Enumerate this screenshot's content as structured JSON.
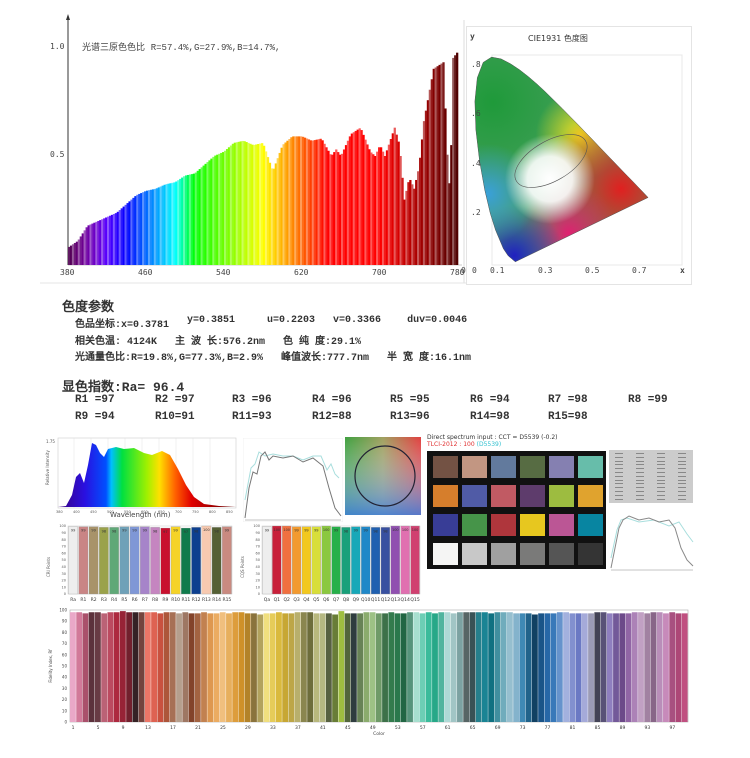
{
  "spectrum": {
    "title": "光谱三原色色比",
    "ratio_text": "R=57.4%,G=27.9%,B=14.7%,",
    "y_ticks": [
      "1.0",
      "0.5"
    ],
    "x_ticks": [
      "380",
      "460",
      "540",
      "620",
      "700",
      "780"
    ]
  },
  "cie": {
    "title": "CIE1931 色度图",
    "y_label": "y",
    "x_label": "x",
    "y_ticks": [
      ".8",
      ".6",
      ".4",
      ".2"
    ],
    "x_ticks": [
      "0",
      "0.1",
      "0.3",
      "0.5",
      "0.7"
    ],
    "origin": "0"
  },
  "chromaticity": {
    "heading": "色度参数",
    "coord_label": "色品坐标:x=0.3781",
    "y": "y=0.3851",
    "u": "u=0.2203",
    "v": "v=0.3366",
    "duv": "duv=0.0046",
    "cct": "相关色温: 4124K",
    "dominant": "主 波 长:576.2nm",
    "purity": "色 纯 度:29.1%",
    "flux_ratio": "光通量色比:R=19.8%,G=77.3%,B=2.9%",
    "peak": "峰值波长:777.7nm",
    "fwhm": "半 宽 度:16.1nm"
  },
  "rendering": {
    "heading": "显色指数:Ra= 96.4",
    "items": [
      "R1 =97",
      "R2 =97",
      "R3 =96",
      "R4 =96",
      "R5 =95",
      "R6 =94",
      "R7 =98",
      "R8 =99",
      "R9 =94",
      "R10=91",
      "R11=93",
      "R12=88",
      "R13=96",
      "R14=98",
      "R15=98"
    ]
  },
  "chart_data": [
    {
      "type": "area",
      "title": "光谱三原色色比 R=57.4%,G=27.9%,B=14.7%,",
      "xlim": [
        380,
        780
      ],
      "ylim": [
        0,
        1.0
      ],
      "x": [
        380,
        390,
        400,
        410,
        420,
        430,
        440,
        450,
        460,
        470,
        480,
        490,
        500,
        510,
        520,
        530,
        540,
        550,
        560,
        570,
        580,
        590,
        600,
        610,
        620,
        630,
        640,
        650,
        655,
        660,
        670,
        680,
        690,
        695,
        700,
        705,
        715,
        720,
        725,
        730,
        735,
        740,
        745,
        755,
        765,
        770,
        772,
        775,
        780
      ],
      "y": [
        0.08,
        0.11,
        0.18,
        0.2,
        0.22,
        0.24,
        0.28,
        0.32,
        0.34,
        0.35,
        0.37,
        0.38,
        0.41,
        0.42,
        0.46,
        0.5,
        0.52,
        0.56,
        0.57,
        0.55,
        0.56,
        0.43,
        0.55,
        0.59,
        0.59,
        0.57,
        0.58,
        0.5,
        0.53,
        0.5,
        0.6,
        0.63,
        0.52,
        0.5,
        0.55,
        0.5,
        0.63,
        0.55,
        0.3,
        0.4,
        0.35,
        0.45,
        0.66,
        0.9,
        0.93,
        0.4,
        0.35,
        0.95,
        0.98
      ]
    },
    {
      "type": "bar",
      "y_label": "CRI Points",
      "categories": [
        "Ra",
        "R1",
        "R2",
        "R3",
        "R4",
        "R5",
        "R6",
        "R7",
        "R8",
        "R9",
        "R10",
        "R11",
        "R12",
        "R13",
        "R14",
        "R15"
      ],
      "values": [
        99,
        99,
        99,
        98,
        98,
        99,
        99,
        99,
        98,
        97,
        99,
        97,
        98,
        100,
        98,
        99
      ],
      "colors": [
        "#eeeeee",
        "#c98585",
        "#a8936a",
        "#9aa24a",
        "#5fa877",
        "#6fa1b8",
        "#7f97d6",
        "#a684c9",
        "#c585c0",
        "#c8102e",
        "#f5d327",
        "#0f7a4b",
        "#0d3f8f",
        "#f7c9b0",
        "#556035",
        "#c98a80"
      ],
      "ylim": [
        0,
        100
      ]
    },
    {
      "type": "bar",
      "y_label": "CQS Points",
      "categories": [
        "Qa",
        "Q1",
        "Q2",
        "Q3",
        "Q4",
        "Q5",
        "Q6",
        "Q7",
        "Q8",
        "Q9",
        "Q10",
        "Q11",
        "Q12",
        "Q13",
        "Q14",
        "Q15"
      ],
      "values": [
        99,
        100,
        100,
        99,
        99,
        99,
        100,
        99,
        98,
        99,
        99,
        98,
        98,
        100,
        100,
        100
      ],
      "colors": [
        "#eeeeee",
        "#c8203a",
        "#f07040",
        "#f29a30",
        "#f2c81e",
        "#d8de3a",
        "#8bc840",
        "#27b04a",
        "#1aa07a",
        "#18a8b8",
        "#2088c8",
        "#2060b0",
        "#3850a0",
        "#9050b0",
        "#e070b0",
        "#d04070"
      ],
      "ylim": [
        0,
        100
      ]
    },
    {
      "type": "bar",
      "x_label": "Color",
      "y_label": "Fidelity Index, Rf",
      "ylim": [
        0,
        100
      ],
      "y_ticks": [
        0,
        10,
        20,
        30,
        40,
        50,
        60,
        70,
        80,
        90,
        100
      ],
      "x_ticks": [
        1,
        5,
        9,
        13,
        17,
        21,
        25,
        29,
        33,
        37,
        41,
        45,
        49,
        53,
        57,
        61,
        65,
        69,
        73,
        77,
        81,
        85,
        89,
        93,
        97
      ],
      "values": [
        98,
        98,
        97,
        98,
        98,
        97,
        98,
        98,
        99,
        98,
        98,
        98,
        98,
        98,
        97,
        98,
        98,
        97,
        98,
        97,
        97,
        98,
        97,
        97,
        98,
        97,
        98,
        98,
        97,
        97,
        96,
        97,
        97,
        98,
        97,
        97,
        98,
        98,
        98,
        97,
        97,
        97,
        96,
        99,
        97,
        97,
        97,
        98,
        98,
        97,
        97,
        98,
        97,
        97,
        98,
        98,
        97,
        98,
        97,
        98,
        98,
        97,
        98,
        98,
        98,
        98,
        98,
        97,
        98,
        98,
        98,
        97,
        97,
        97,
        96,
        97,
        97,
        97,
        98,
        98,
        97,
        97,
        97,
        97,
        98,
        98,
        97,
        97,
        97,
        97,
        98,
        98,
        97,
        98,
        98,
        97,
        98,
        97,
        97
      ],
      "palette": [
        "#eaa8c8",
        "#c05878",
        "#3a2428",
        "#c8687e",
        "#b02a40",
        "#8a2030",
        "#222222",
        "#f07868",
        "#d05040",
        "#a05838",
        "#b8a898",
        "#804028",
        "#b87850",
        "#e8a050",
        "#f0c080",
        "#e0a040",
        "#c88a20",
        "#807040",
        "#f0e080",
        "#e0c040",
        "#c0a030",
        "#b8b070",
        "#606030",
        "#e0e0a0",
        "#3e4a30",
        "#a0c040",
        "#1e2838",
        "#80a060",
        "#a0c488",
        "#3e7048",
        "#2e8050",
        "#1e6040",
        "#a8e0d0",
        "#40c0a0",
        "#1ea080",
        "#c0e0e0",
        "#80a8a8",
        "#404040",
        "#2090a0",
        "#107080",
        "#68a8b8",
        "#a8c8d8",
        "#3080b0",
        "#104060",
        "#2060a0",
        "#4080c0",
        "#a8b4e0",
        "#6070c0",
        "#c4c4e4",
        "#2e2e3e",
        "#9080c0",
        "#604080",
        "#a070b0",
        "#c4a4c4",
        "#806080",
        "#d4a4d4",
        "#a04070",
        "#c05080"
      ]
    }
  ],
  "mini_spectrum": {
    "y_label": "Relative Intensity",
    "x_label": "Wavelength (nm)",
    "y_top": "1.75",
    "x_ticks": [
      "380",
      "400",
      "450",
      "500",
      "550",
      "600",
      "650",
      "700",
      "750",
      "800",
      "850"
    ]
  },
  "colorchecker": {
    "title": "Direct spectrum input : CCT = D5539 (-0.2)",
    "tlci_label": "TLCI-2012 : 100",
    "tlci_ref": "(D5539)",
    "patches": [
      "#735244",
      "#c29682",
      "#627a9d",
      "#576c43",
      "#8580b1",
      "#67bdaa",
      "#d67e2c",
      "#505ba6",
      "#c15a63",
      "#5e3c6c",
      "#9dbc40",
      "#e0a32e",
      "#383d96",
      "#469449",
      "#af363c",
      "#e7c71f",
      "#bb5695",
      "#0885a1",
      "#f5f5f4",
      "#c8c8c8",
      "#a0a0a0",
      "#7a7a79",
      "#555555",
      "#343434"
    ]
  }
}
